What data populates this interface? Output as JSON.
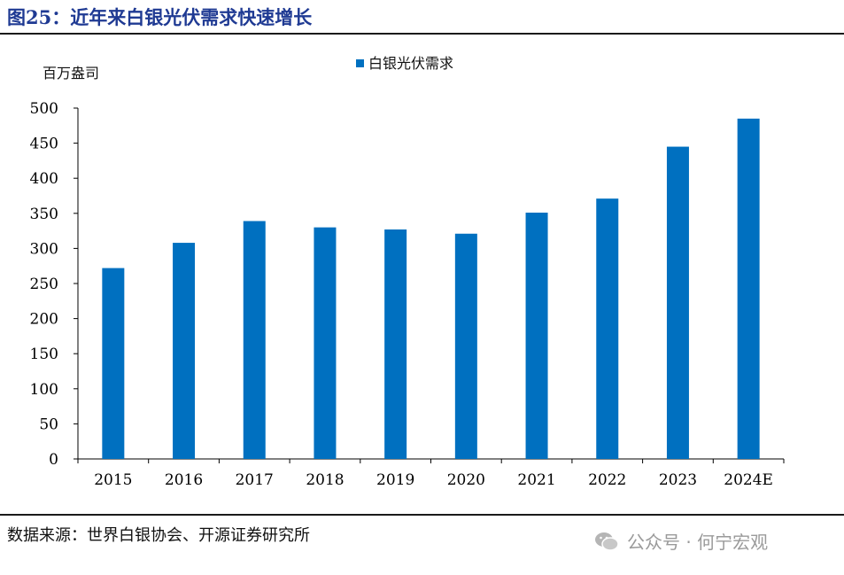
{
  "header": {
    "title": "图25：近年来白银光伏需求快速增长"
  },
  "chart_data": {
    "type": "bar",
    "unit_label": "百万盎司",
    "categories": [
      "2015",
      "2016",
      "2017",
      "2018",
      "2019",
      "2020",
      "2021",
      "2022",
      "2023",
      "2024E"
    ],
    "series": [
      {
        "name": "白银光伏需求",
        "values": [
          272,
          308,
          339,
          330,
          327,
          321,
          351,
          371,
          445,
          485
        ]
      }
    ],
    "ylim": [
      0,
      500
    ],
    "yticks": [
      0,
      50,
      100,
      150,
      200,
      250,
      300,
      350,
      400,
      450,
      500
    ],
    "grid": false,
    "legend": "top",
    "color": "#0070c0"
  },
  "footer": {
    "source": "数据来源：世界白银协会、开源证券研究所",
    "watermark": "公众号 · 何宁宏观"
  }
}
